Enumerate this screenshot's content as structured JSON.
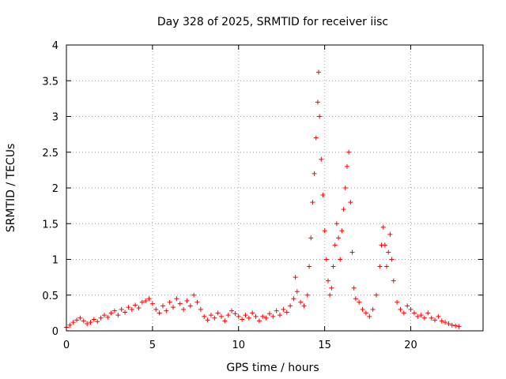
{
  "chart_data": {
    "type": "scatter",
    "title": "Day 328 of 2025, SRMTID for receiver iisc",
    "xlabel": "GPS time / hours",
    "ylabel": "SRMTID / TECUs",
    "xlim": [
      0,
      24.2
    ],
    "ylim": [
      0,
      4
    ],
    "xticks": [
      0,
      5,
      10,
      15,
      20
    ],
    "xtick_labels": [
      "0",
      "5",
      "10",
      "15",
      "20"
    ],
    "yticks": [
      0,
      0.5,
      1,
      1.5,
      2,
      2.5,
      3,
      3.5,
      4
    ],
    "ytick_labels": [
      "0",
      "0.5",
      "1",
      "1.5",
      "2",
      "2.5",
      "3",
      "3.5",
      "4"
    ],
    "grid": true,
    "marker": "plus",
    "color": "#ff0000",
    "series": [
      {
        "name": "SRMTID",
        "points": [
          [
            0.0,
            0.05
          ],
          [
            0.2,
            0.08
          ],
          [
            0.4,
            0.12
          ],
          [
            0.6,
            0.15
          ],
          [
            0.8,
            0.18
          ],
          [
            1.0,
            0.14
          ],
          [
            1.2,
            0.1
          ],
          [
            1.4,
            0.12
          ],
          [
            1.6,
            0.16
          ],
          [
            1.8,
            0.13
          ],
          [
            2.0,
            0.18
          ],
          [
            2.2,
            0.22
          ],
          [
            2.4,
            0.19
          ],
          [
            2.6,
            0.25
          ],
          [
            2.8,
            0.28
          ],
          [
            3.0,
            0.22
          ],
          [
            3.2,
            0.3
          ],
          [
            3.4,
            0.26
          ],
          [
            3.6,
            0.33
          ],
          [
            3.8,
            0.3
          ],
          [
            4.0,
            0.36
          ],
          [
            4.2,
            0.32
          ],
          [
            4.4,
            0.4
          ],
          [
            4.6,
            0.42
          ],
          [
            4.8,
            0.45
          ],
          [
            5.0,
            0.38
          ],
          [
            5.2,
            0.3
          ],
          [
            5.4,
            0.25
          ],
          [
            5.6,
            0.35
          ],
          [
            5.8,
            0.28
          ],
          [
            6.0,
            0.4
          ],
          [
            6.2,
            0.33
          ],
          [
            6.4,
            0.45
          ],
          [
            6.6,
            0.38
          ],
          [
            6.8,
            0.3
          ],
          [
            7.0,
            0.42
          ],
          [
            7.2,
            0.35
          ],
          [
            7.4,
            0.5
          ],
          [
            7.6,
            0.4
          ],
          [
            7.8,
            0.3
          ],
          [
            8.0,
            0.2
          ],
          [
            8.2,
            0.15
          ],
          [
            8.4,
            0.22
          ],
          [
            8.6,
            0.18
          ],
          [
            8.8,
            0.25
          ],
          [
            9.0,
            0.2
          ],
          [
            9.2,
            0.14
          ],
          [
            9.4,
            0.22
          ],
          [
            9.6,
            0.28
          ],
          [
            9.8,
            0.24
          ],
          [
            10.0,
            0.2
          ],
          [
            10.2,
            0.16
          ],
          [
            10.4,
            0.22
          ],
          [
            10.6,
            0.18
          ],
          [
            10.8,
            0.25
          ],
          [
            11.0,
            0.2
          ],
          [
            11.2,
            0.14
          ],
          [
            11.4,
            0.2
          ],
          [
            11.6,
            0.18
          ],
          [
            11.8,
            0.24
          ],
          [
            12.0,
            0.2
          ],
          [
            12.2,
            0.28
          ],
          [
            12.4,
            0.22
          ],
          [
            12.6,
            0.3
          ],
          [
            12.8,
            0.26
          ],
          [
            13.0,
            0.35
          ],
          [
            13.2,
            0.45
          ],
          [
            13.3,
            0.75
          ],
          [
            13.4,
            0.55
          ],
          [
            13.6,
            0.4
          ],
          [
            13.8,
            0.35
          ],
          [
            14.0,
            0.5
          ],
          [
            14.1,
            0.9
          ],
          [
            14.2,
            1.3
          ],
          [
            14.3,
            1.8
          ],
          [
            14.4,
            2.2
          ],
          [
            14.5,
            2.7
          ],
          [
            14.6,
            3.2
          ],
          [
            14.65,
            3.62
          ],
          [
            14.7,
            3.0
          ],
          [
            14.8,
            2.4
          ],
          [
            14.9,
            1.9
          ],
          [
            15.0,
            1.4
          ],
          [
            15.1,
            1.0
          ],
          [
            15.2,
            0.7
          ],
          [
            15.3,
            0.5
          ],
          [
            15.4,
            0.6
          ],
          [
            15.5,
            0.9
          ],
          [
            15.6,
            1.2
          ],
          [
            15.7,
            1.5
          ],
          [
            15.8,
            1.3
          ],
          [
            15.9,
            1.0
          ],
          [
            16.0,
            1.4
          ],
          [
            16.1,
            1.7
          ],
          [
            16.2,
            2.0
          ],
          [
            16.3,
            2.3
          ],
          [
            16.4,
            2.5
          ],
          [
            16.5,
            1.8
          ],
          [
            16.6,
            1.1
          ],
          [
            16.7,
            0.6
          ],
          [
            16.8,
            0.45
          ],
          [
            17.0,
            0.4
          ],
          [
            17.2,
            0.3
          ],
          [
            17.4,
            0.25
          ],
          [
            17.6,
            0.2
          ],
          [
            17.8,
            0.3
          ],
          [
            18.0,
            0.5
          ],
          [
            18.2,
            0.9
          ],
          [
            18.3,
            1.2
          ],
          [
            18.4,
            1.45
          ],
          [
            18.5,
            1.2
          ],
          [
            18.6,
            0.9
          ],
          [
            18.7,
            1.1
          ],
          [
            18.8,
            1.35
          ],
          [
            18.9,
            1.0
          ],
          [
            19.0,
            0.7
          ],
          [
            19.2,
            0.4
          ],
          [
            19.4,
            0.3
          ],
          [
            19.6,
            0.25
          ],
          [
            19.8,
            0.35
          ],
          [
            20.0,
            0.3
          ],
          [
            20.2,
            0.25
          ],
          [
            20.4,
            0.2
          ],
          [
            20.6,
            0.22
          ],
          [
            20.8,
            0.18
          ],
          [
            21.0,
            0.25
          ],
          [
            21.2,
            0.18
          ],
          [
            21.4,
            0.15
          ],
          [
            21.6,
            0.2
          ],
          [
            21.8,
            0.14
          ],
          [
            22.0,
            0.12
          ],
          [
            22.2,
            0.1
          ],
          [
            22.4,
            0.08
          ],
          [
            22.6,
            0.07
          ],
          [
            22.8,
            0.06
          ]
        ]
      }
    ]
  }
}
